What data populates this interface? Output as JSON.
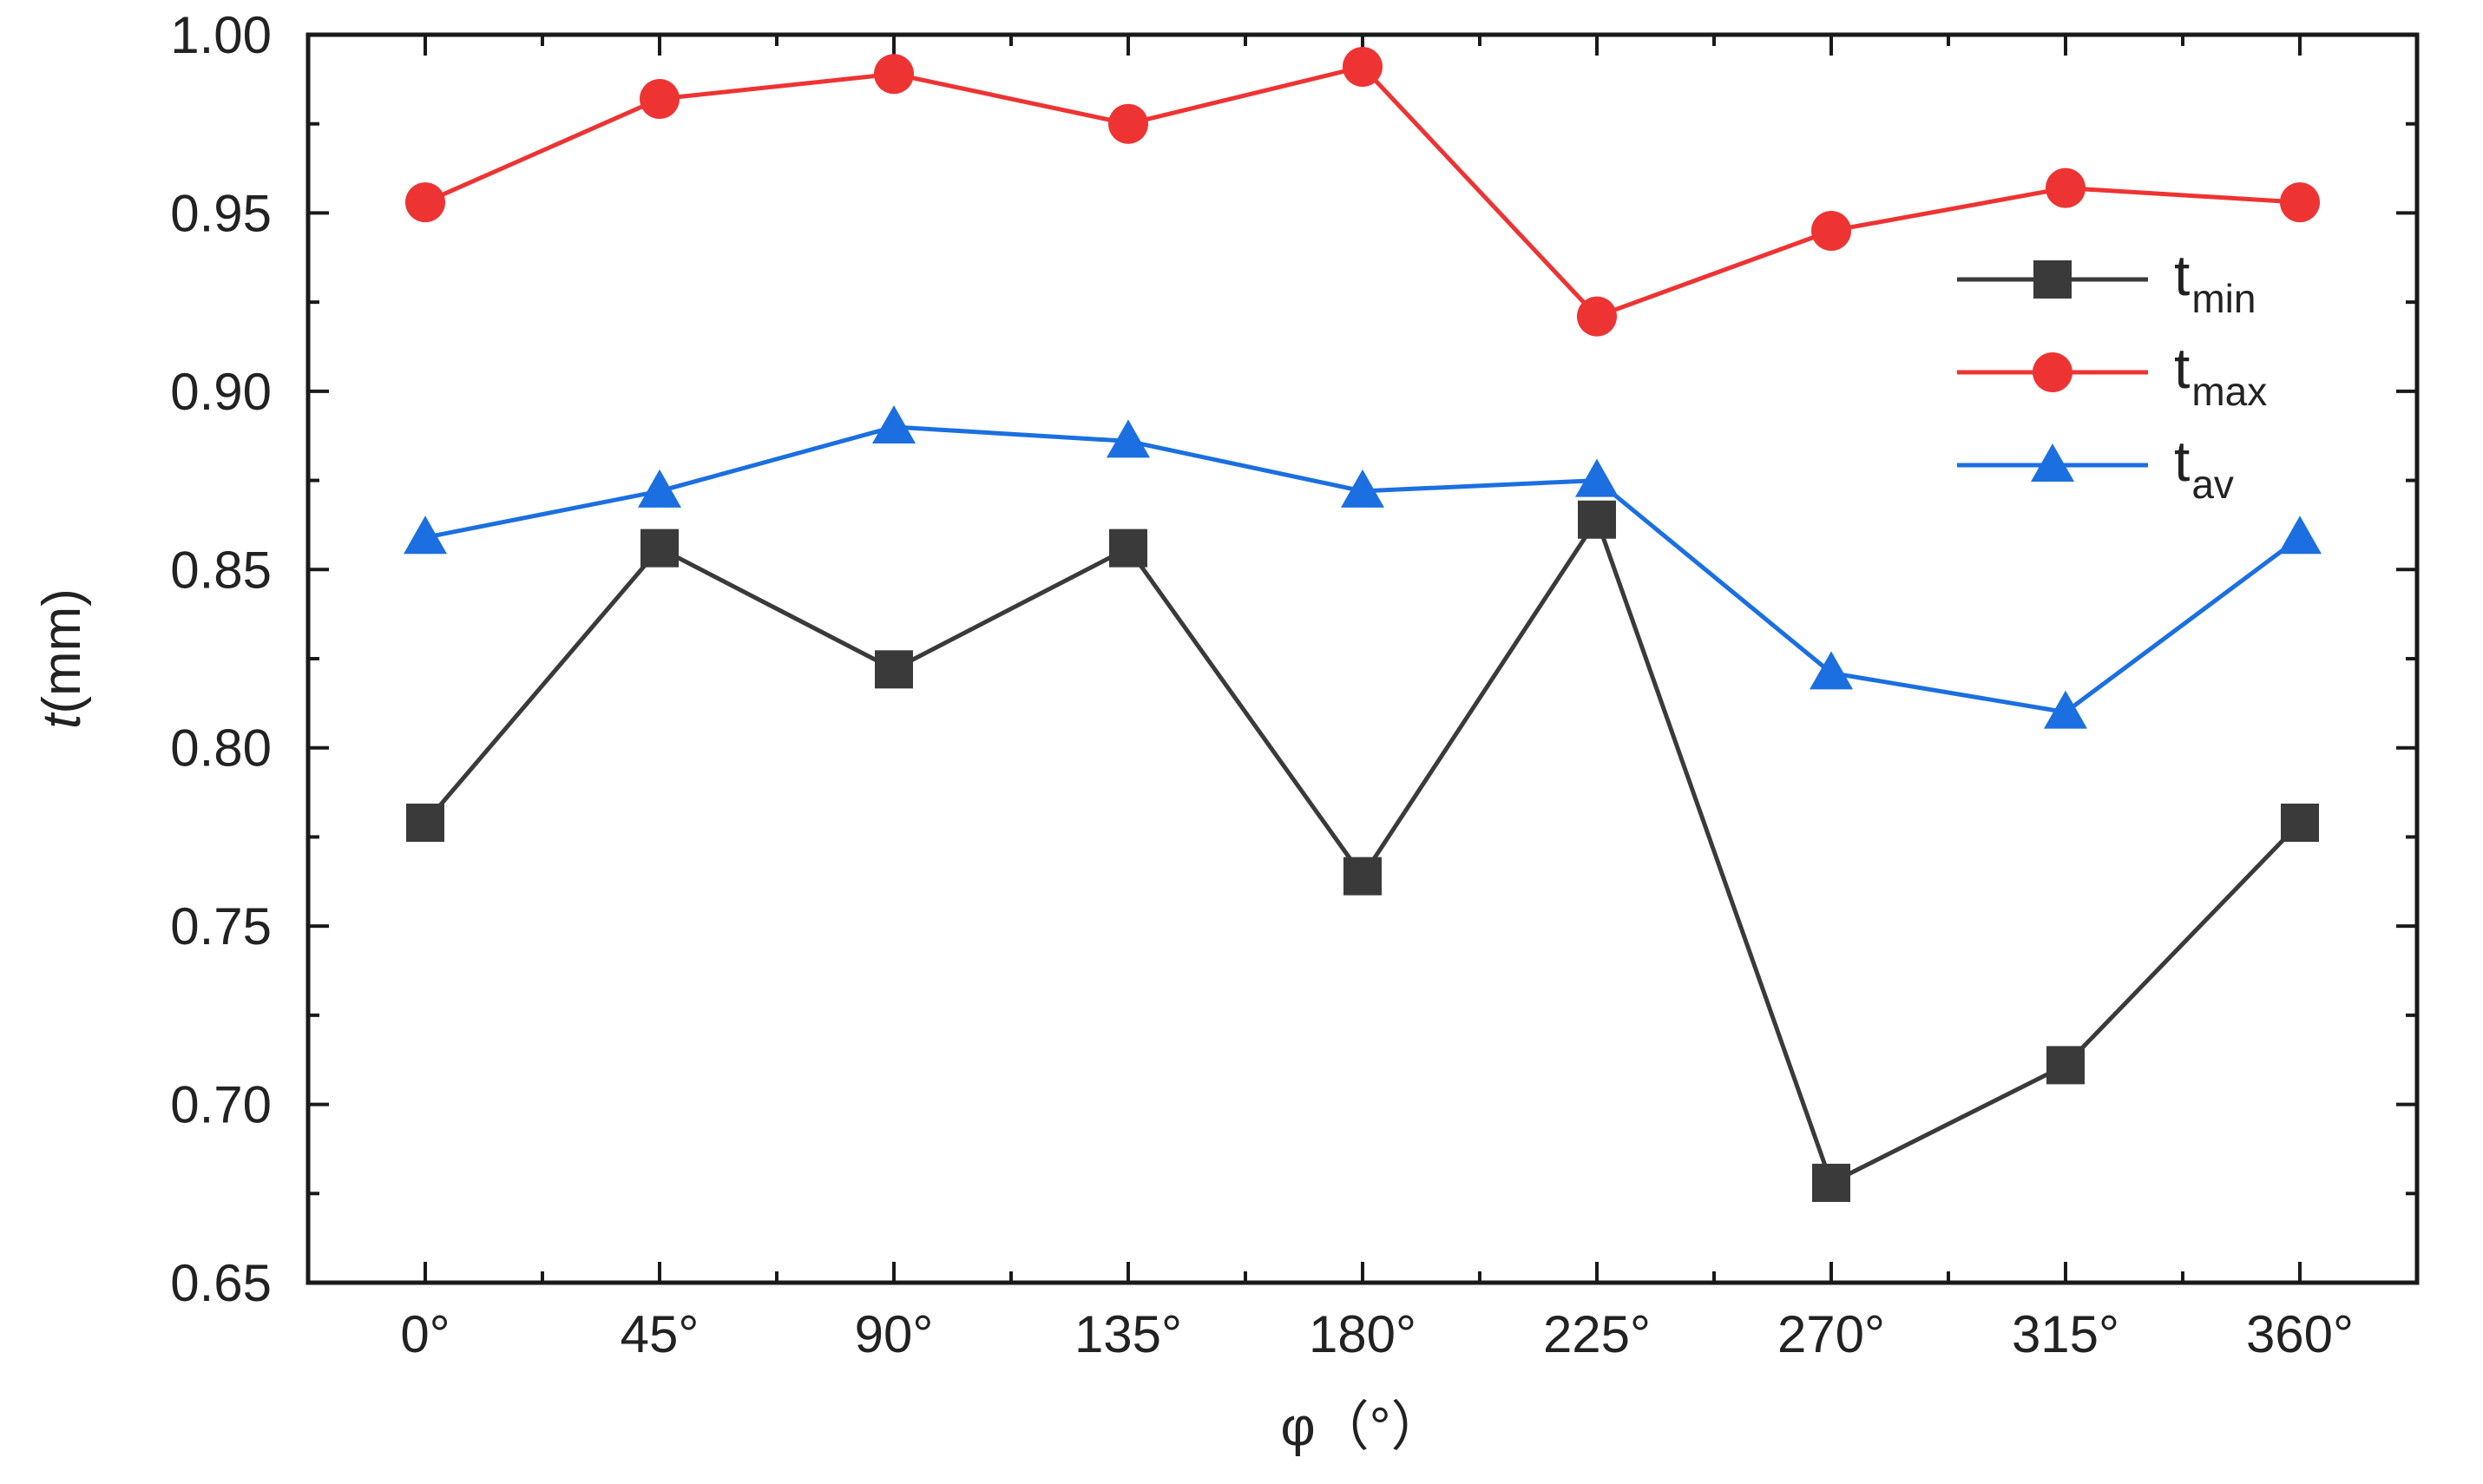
{
  "chart_data": {
    "type": "line",
    "categories": [
      "0°",
      "45°",
      "90°",
      "135°",
      "180°",
      "225°",
      "270°",
      "315°",
      "360°"
    ],
    "x": [
      0,
      45,
      90,
      135,
      180,
      225,
      270,
      315,
      360
    ],
    "xlim": [
      -22.5,
      382.5
    ],
    "ylim": [
      0.65,
      1.0
    ],
    "y_ticks": [
      "0.65",
      "0.70",
      "0.75",
      "0.80",
      "0.85",
      "0.90",
      "0.95",
      "1.00"
    ],
    "xlabel": "φ（°）",
    "ylabel_var": "t",
    "ylabel_unit": "(mm)",
    "grid": false,
    "legend_position": "right",
    "series": [
      {
        "name": "t",
        "name_sub": "min",
        "marker": "square",
        "color": "#3a3a3a",
        "values": [
          0.779,
          0.856,
          0.822,
          0.856,
          0.764,
          0.864,
          0.678,
          0.711,
          0.779
        ]
      },
      {
        "name": "t",
        "name_sub": "max",
        "marker": "circle",
        "color": "#ee3333",
        "values": [
          0.953,
          0.982,
          0.989,
          0.975,
          0.991,
          0.921,
          0.945,
          0.957,
          0.953
        ]
      },
      {
        "name": "t",
        "name_sub": "av",
        "marker": "triangle",
        "color": "#1b6fe0",
        "values": [
          0.859,
          0.872,
          0.89,
          0.886,
          0.872,
          0.875,
          0.821,
          0.81,
          0.859
        ]
      }
    ]
  }
}
